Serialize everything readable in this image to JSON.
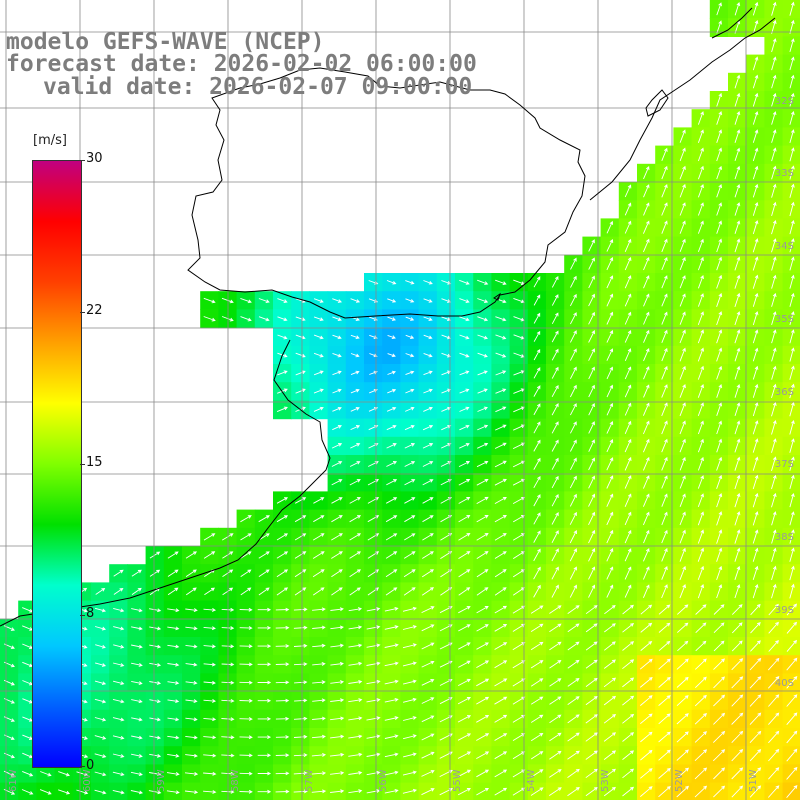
{
  "titles": {
    "line1": "modelo GEFS-WAVE (NCEP)",
    "line2": "forecast date: 2026-02-02 06:00:00",
    "line3": "valid date: 2026-02-07 09:00:00"
  },
  "colorbar": {
    "unit": "[m/s]",
    "min": 0,
    "max": 30,
    "ticks": [
      "30",
      "22",
      "15",
      "8",
      "0"
    ],
    "colors": [
      "#0000ff",
      "#0060ff",
      "#00c8ff",
      "#00ffcc",
      "#00e000",
      "#80ff00",
      "#ffff00",
      "#ffa000",
      "#ff4000",
      "#ff0000",
      "#c00080"
    ]
  },
  "map": {
    "lat_labels": [
      "32S",
      "33S",
      "34S",
      "35S",
      "36S",
      "37S",
      "38S",
      "39S",
      "40S"
    ],
    "lon_labels": [
      "61W",
      "60W",
      "59W",
      "58W",
      "57W",
      "56W",
      "55W",
      "54W",
      "53W",
      "52W",
      "51W"
    ],
    "coastline_color": "#000000",
    "grid_color": "#888888",
    "wind_arrow_color": "#ffffff"
  }
}
